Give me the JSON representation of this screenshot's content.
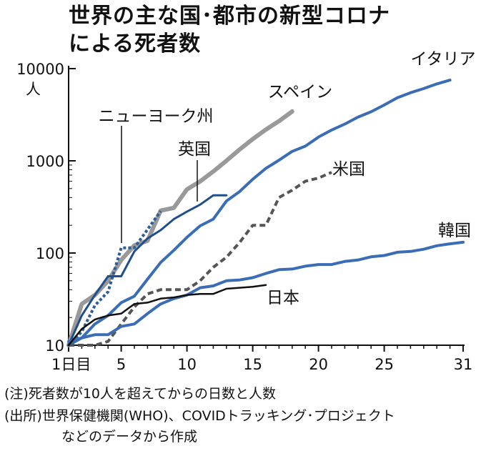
{
  "title_line1": "世界の主な国･都市の新型コロナ",
  "title_line2": "による死者数",
  "footnote": "(注)死者数が10人を超えてからの日数と人数",
  "source_line1": "(出所)世界保健機関(WHO)、COVIDトラッキング･プロジェクト",
  "source_line2": "などのデータから作成",
  "chart_data": {
    "type": "line",
    "xlabel": "",
    "ylabel": "人",
    "yscale": "log",
    "xlim": [
      1,
      31
    ],
    "ylim": [
      10,
      10000
    ],
    "x_ticks": [
      {
        "value": 1,
        "label": "1日目"
      },
      {
        "value": 5,
        "label": "5"
      },
      {
        "value": 10,
        "label": "10"
      },
      {
        "value": 15,
        "label": "15"
      },
      {
        "value": 20,
        "label": "20"
      },
      {
        "value": 25,
        "label": "25"
      },
      {
        "value": 31,
        "label": "31"
      }
    ],
    "y_ticks": [
      {
        "value": 10,
        "label": "10"
      },
      {
        "value": 100,
        "label": "100"
      },
      {
        "value": 1000,
        "label": "1000"
      },
      {
        "value": 10000,
        "label": "10000"
      }
    ],
    "grid": false,
    "series": [
      {
        "name": "スペイン",
        "color": "#999999",
        "width": 6,
        "dash": "",
        "x": [
          1,
          2,
          3,
          4,
          5,
          6,
          7,
          8,
          9,
          10,
          11,
          12,
          13,
          14,
          15,
          16,
          17,
          18
        ],
        "y": [
          10,
          28,
          35,
          50,
          84,
          121,
          136,
          288,
          309,
          491,
          598,
          767,
          1002,
          1326,
          1720,
          2182,
          2696,
          3434
        ]
      },
      {
        "name": "イタリア",
        "color": "#3a6db5",
        "width": 4,
        "dash": "",
        "x": [
          1,
          2,
          3,
          4,
          5,
          6,
          7,
          8,
          9,
          10,
          11,
          12,
          13,
          14,
          15,
          16,
          17,
          18,
          19,
          20,
          21,
          22,
          23,
          24,
          25,
          26,
          27,
          28,
          29,
          30
        ],
        "y": [
          10,
          12,
          17,
          21,
          29,
          34,
          52,
          79,
          107,
          148,
          197,
          233,
          366,
          463,
          631,
          827,
          1016,
          1266,
          1441,
          1809,
          2158,
          2503,
          2978,
          3405,
          4032,
          4825,
          5476,
          6077,
          6820,
          7503
        ]
      },
      {
        "name": "ニューヨーク州",
        "color": "#2e5d99",
        "width": 4,
        "dash": "4,3",
        "x": [
          1,
          2,
          3,
          4,
          5,
          6,
          7,
          8
        ],
        "y": [
          10,
          14,
          27,
          38,
          114,
          114,
          180,
          285
        ]
      },
      {
        "name": "英国",
        "color": "#1f4e8c",
        "width": 3,
        "dash": "",
        "x": [
          1,
          2,
          3,
          4,
          5,
          6,
          7,
          8,
          9,
          10,
          11,
          12,
          13
        ],
        "y": [
          10,
          21,
          35,
          56,
          56,
          104,
          144,
          177,
          233,
          281,
          335,
          422,
          422
        ]
      },
      {
        "name": "米国",
        "color": "#555555",
        "width": 4,
        "dash": "8,5",
        "x": [
          1,
          2,
          3,
          4,
          5,
          6,
          7,
          8,
          9,
          10,
          11,
          12,
          13,
          14,
          15,
          16,
          17,
          18,
          19,
          20,
          21
        ],
        "y": [
          10,
          10,
          10,
          11,
          17,
          26,
          36,
          40,
          40,
          40,
          50,
          70,
          90,
          130,
          200,
          200,
          400,
          480,
          600,
          650,
          750
        ]
      },
      {
        "name": "韓国",
        "color": "#3a6db5",
        "width": 4,
        "dash": "",
        "x": [
          1,
          2,
          3,
          4,
          5,
          6,
          7,
          8,
          9,
          10,
          11,
          12,
          13,
          14,
          15,
          16,
          17,
          18,
          19,
          20,
          21,
          22,
          23,
          24,
          25,
          26,
          27,
          28,
          29,
          30,
          31
        ],
        "y": [
          11,
          12,
          13,
          13,
          16,
          17,
          22,
          28,
          32,
          35,
          42,
          44,
          50,
          51,
          54,
          60,
          66,
          67,
          72,
          75,
          75,
          81,
          84,
          91,
          94,
          102,
          104,
          110,
          120,
          126,
          131
        ]
      },
      {
        "name": "日本",
        "color": "#111111",
        "width": 2.5,
        "dash": "",
        "x": [
          1,
          2,
          3,
          4,
          5,
          6,
          7,
          8,
          9,
          10,
          11,
          12,
          13,
          14,
          15,
          16
        ],
        "y": [
          10,
          15,
          19,
          21,
          22,
          28,
          29,
          32,
          33,
          35,
          36,
          36,
          41,
          42,
          43,
          45
        ]
      }
    ]
  }
}
